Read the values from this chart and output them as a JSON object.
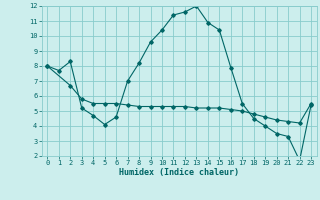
{
  "title": "",
  "xlabel": "Humidex (Indice chaleur)",
  "ylabel": "",
  "background_color": "#cceeed",
  "grid_color": "#88cccc",
  "line_color": "#006666",
  "x_line1": [
    0,
    1,
    2,
    3,
    4,
    5,
    6,
    7,
    8,
    9,
    10,
    11,
    12,
    13,
    14,
    15,
    16,
    17,
    18,
    19,
    20,
    21,
    22,
    23
  ],
  "y_line1": [
    8.0,
    7.7,
    8.3,
    5.2,
    4.7,
    4.1,
    4.6,
    7.0,
    8.2,
    9.6,
    10.4,
    11.4,
    11.6,
    12.0,
    10.9,
    10.4,
    7.9,
    5.5,
    4.5,
    4.0,
    3.5,
    3.3,
    1.7,
    5.4
  ],
  "x_line2": [
    0,
    2,
    3,
    4,
    5,
    6,
    7,
    8,
    9,
    10,
    11,
    12,
    13,
    14,
    15,
    16,
    17,
    18,
    19,
    20,
    21,
    22,
    23
  ],
  "y_line2": [
    8.0,
    6.7,
    5.8,
    5.5,
    5.5,
    5.5,
    5.4,
    5.3,
    5.3,
    5.3,
    5.3,
    5.3,
    5.2,
    5.2,
    5.2,
    5.1,
    5.0,
    4.8,
    4.6,
    4.4,
    4.3,
    4.2,
    5.5
  ],
  "xlim": [
    -0.5,
    23.5
  ],
  "ylim": [
    2,
    12
  ],
  "yticks": [
    2,
    3,
    4,
    5,
    6,
    7,
    8,
    9,
    10,
    11,
    12
  ],
  "xticks": [
    0,
    1,
    2,
    3,
    4,
    5,
    6,
    7,
    8,
    9,
    10,
    11,
    12,
    13,
    14,
    15,
    16,
    17,
    18,
    19,
    20,
    21,
    22,
    23
  ],
  "tick_fontsize": 5.0,
  "xlabel_fontsize": 6.0
}
